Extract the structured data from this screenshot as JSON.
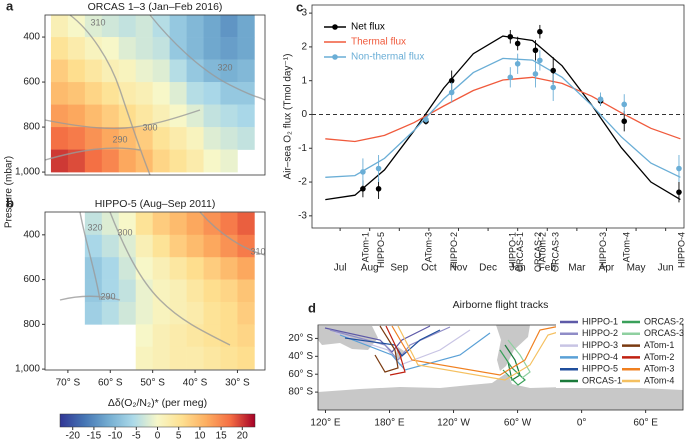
{
  "chart_data": [
    {
      "type": "heatmap",
      "letter": "a",
      "title": "ORCAS 1–3 (Jan–Feb 2016)",
      "ylabel": "Pressure (mbar)",
      "x": [
        -72,
        -68,
        -64,
        -60,
        -56,
        -52,
        -48,
        -44,
        -40,
        -36,
        -32,
        -28
      ],
      "y": [
        350,
        450,
        550,
        650,
        750,
        850,
        950
      ],
      "values": [
        [
          2,
          0,
          -2,
          -3,
          -4,
          -3,
          -5,
          -8,
          -10,
          -12,
          -14,
          -12
        ],
        [
          5,
          3,
          1,
          0,
          -2,
          -3,
          -4,
          -8,
          -10,
          -12,
          -13,
          -12
        ],
        [
          8,
          6,
          4,
          2,
          1,
          -1,
          -2,
          -5,
          -8,
          -10,
          -11,
          -10
        ],
        [
          10,
          9,
          7,
          5,
          3,
          2,
          0,
          -2,
          -5,
          -6,
          -8,
          -8
        ],
        [
          13,
          12,
          10,
          8,
          6,
          4,
          2,
          0,
          -2,
          -4,
          -5,
          -6
        ],
        [
          17,
          16,
          14,
          12,
          10,
          8,
          5,
          3,
          1,
          -2,
          -3,
          -4
        ],
        [
          20,
          19,
          17,
          15,
          12,
          10,
          7,
          5,
          3,
          0,
          -1,
          null
        ]
      ],
      "xlim": [
        -75.4,
        -23.5
      ],
      "ylim": [
        1013,
        302
      ],
      "yticks": [
        400,
        600,
        800,
        {
          "value": 1000,
          "label": "1,000"
        }
      ],
      "annotations": [
        "310",
        "320",
        "300",
        "290"
      ]
    },
    {
      "type": "heatmap",
      "letter": "b",
      "title": "HIPPO-5 (Aug–Sep 2011)",
      "x": [
        -72,
        -68,
        -64,
        -60,
        -56,
        -52,
        -48,
        -44,
        -40,
        -36,
        -32,
        -28
      ],
      "y": [
        350,
        450,
        550,
        650,
        750,
        850,
        950
      ],
      "values": [
        [
          null,
          null,
          -4,
          -2,
          0,
          5,
          8,
          10,
          12,
          14,
          16,
          18
        ],
        [
          null,
          null,
          -6,
          -4,
          -2,
          2,
          5,
          8,
          10,
          12,
          14,
          16
        ],
        [
          null,
          null,
          -8,
          -6,
          -3,
          0,
          2,
          4,
          6,
          8,
          10,
          12
        ],
        [
          null,
          null,
          -8,
          -6,
          -4,
          -1,
          1,
          2,
          4,
          6,
          7,
          9
        ],
        [
          null,
          null,
          -7,
          -5,
          -3,
          -1,
          1,
          2,
          3,
          5,
          6,
          8
        ],
        [
          null,
          null,
          null,
          null,
          null,
          0,
          2,
          3,
          4,
          5,
          6,
          7
        ],
        [
          null,
          null,
          null,
          null,
          null,
          1,
          2,
          3,
          3,
          4,
          5,
          6
        ]
      ],
      "xlim": [
        -75.4,
        -23.5
      ],
      "ylim": [
        1004,
        298
      ],
      "yticks": [
        400,
        600,
        800,
        {
          "value": 1000,
          "label": "1,000"
        }
      ],
      "xticks": [
        {
          "value": -70,
          "label": "70° S"
        },
        {
          "value": -60,
          "label": "60° S"
        },
        {
          "value": -50,
          "label": "50° S"
        },
        {
          "value": -40,
          "label": "40° S"
        },
        {
          "value": -30,
          "label": "30° S"
        }
      ],
      "annotations": [
        "320",
        "300",
        "310",
        "290"
      ]
    },
    {
      "type": "colorbar",
      "label": "Δδ(O₂/N₂)* (per meg)",
      "lim": [
        -23,
        23
      ],
      "ticks": [
        -20,
        -15,
        -10,
        -5,
        0,
        5,
        10,
        15,
        20
      ],
      "colors": [
        "#313695",
        "#4575b4",
        "#74add1",
        "#abd9e9",
        "#f7f7c8",
        "#fee090",
        "#fdae61",
        "#f46d43",
        "#a50026"
      ]
    },
    {
      "type": "line",
      "letter": "c",
      "ylabel": "Air–sea O₂ flux (Tmol day⁻¹)",
      "xlim": [
        -0.95,
        11.62
      ],
      "ylim": [
        -3.36,
        3.24
      ],
      "yticks": [
        -3,
        -2,
        -1,
        0,
        1,
        2,
        3
      ],
      "xticks": [
        {
          "value": 0,
          "label": "Jul"
        },
        {
          "value": 1,
          "label": "Aug"
        },
        {
          "value": 2,
          "label": "Sep"
        },
        {
          "value": 3,
          "label": "Oct"
        },
        {
          "value": 4,
          "label": "Nov"
        },
        {
          "value": 5,
          "label": "Dec"
        },
        {
          "value": 6,
          "label": "Jan"
        },
        {
          "value": 7,
          "label": "Feb"
        },
        {
          "value": 8,
          "label": "Mar"
        },
        {
          "value": 9,
          "label": "Apr"
        },
        {
          "value": 10,
          "label": "May"
        },
        {
          "value": 11,
          "label": "Jun"
        }
      ],
      "reference_line": 0,
      "legend": "upper left",
      "x": [
        -0.5,
        0.5,
        1.5,
        2.5,
        3.5,
        4.5,
        5.5,
        6.5,
        7.5,
        8.5,
        9.5,
        10.5,
        11.5
      ],
      "point_x": [
        0.77,
        1.3,
        2.9,
        3.77,
        5.75,
        6.0,
        6.6,
        6.75,
        7.2,
        8.8,
        9.6,
        11.45
      ],
      "point_labels": [
        "ATom-1",
        "HIPPO-5",
        "ATom-3",
        "HIPPO-2",
        "HIPPO-1",
        "ORCAS-1",
        "ORCAS-2",
        "ATom-2",
        "ORCAS-3",
        "HIPPO-3",
        "ATom-4",
        "HIPPO-4"
      ],
      "series": [
        {
          "name": "Net flux",
          "color": "#000000",
          "curve": [
            -2.52,
            -2.39,
            -1.64,
            -0.48,
            0.78,
            1.8,
            2.32,
            2.19,
            1.44,
            0.28,
            -0.98,
            -2.0,
            -2.52
          ],
          "points": [
            -2.2,
            -2.2,
            -0.2,
            1.0,
            2.3,
            2.1,
            1.9,
            2.45,
            1.3,
            0.4,
            -0.2,
            -2.3
          ],
          "errors": [
            0.25,
            0.3,
            0.1,
            0.3,
            0.2,
            0.2,
            0.3,
            0.2,
            0.4,
            0.15,
            0.3,
            0.3
          ]
        },
        {
          "name": "Thermal flux",
          "color": "#f05a3c",
          "curve": [
            -0.72,
            -0.8,
            -0.62,
            -0.24,
            0.25,
            0.71,
            1.02,
            1.1,
            0.92,
            0.54,
            0.05,
            -0.41,
            -0.72
          ]
        },
        {
          "name": "Non-thermal flux",
          "color": "#6aaed6",
          "curve": [
            -1.86,
            -1.81,
            -1.3,
            -0.47,
            0.46,
            1.24,
            1.66,
            1.61,
            1.1,
            0.27,
            -0.66,
            -1.44,
            -1.86
          ],
          "points": [
            -1.7,
            -1.6,
            -0.15,
            0.65,
            1.1,
            1.5,
            1.2,
            1.6,
            0.8,
            0.45,
            0.3,
            -1.6
          ],
          "errors": [
            0.4,
            0.4,
            0.1,
            0.3,
            0.3,
            0.3,
            0.4,
            0.3,
            0.4,
            0.2,
            0.3,
            0.4
          ]
        }
      ]
    },
    {
      "type": "map",
      "letter": "d",
      "title": "Airborne flight tracks",
      "xlim": [
        113,
        455
      ],
      "ylim": [
        -5,
        -100
      ],
      "xticks": [
        {
          "value": 120,
          "label": "120° E"
        },
        {
          "value": 180,
          "label": "180° E"
        },
        {
          "value": 240,
          "label": "120° W"
        },
        {
          "value": 300,
          "label": "60° W"
        },
        {
          "value": 360,
          "label": "0°"
        },
        {
          "value": 420,
          "label": "60° E"
        }
      ],
      "yticks": [
        {
          "value": -20,
          "label": "20° S"
        },
        {
          "value": -40,
          "label": "40° S"
        },
        {
          "value": -60,
          "label": "60° S"
        },
        {
          "value": -80,
          "label": "80° S"
        }
      ],
      "series": [
        {
          "name": "HIPPO-1",
          "color": "#5e5aa8"
        },
        {
          "name": "HIPPO-2",
          "color": "#8f8cc7"
        },
        {
          "name": "HIPPO-3",
          "color": "#c8c4e4"
        },
        {
          "name": "HIPPO-4",
          "color": "#5aa0d6"
        },
        {
          "name": "HIPPO-5",
          "color": "#1f4e9c"
        },
        {
          "name": "ORCAS-1",
          "color": "#1a7a3a"
        },
        {
          "name": "ORCAS-2",
          "color": "#3aa05a"
        },
        {
          "name": "ORCAS-3",
          "color": "#8fd0a0"
        },
        {
          "name": "ATom-1",
          "color": "#7a3a10"
        },
        {
          "name": "ATom-2",
          "color": "#c02010"
        },
        {
          "name": "ATom-3",
          "color": "#f08020"
        },
        {
          "name": "ATom-4",
          "color": "#f5c060"
        }
      ]
    }
  ]
}
